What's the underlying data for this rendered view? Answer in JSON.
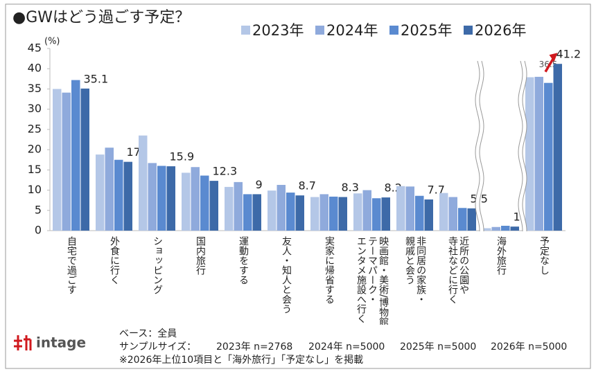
{
  "chart_data": {
    "type": "bar",
    "title": "●GWはどう過ごす予定？",
    "y_unit": "(%)",
    "categories": [
      "自宅で過ごす",
      "外食に行く",
      "ショッピング",
      "国内旅行",
      "運動をする",
      "友人・知人と会う",
      "実家に帰省する",
      "映画館・美術/博物館・\nテーマパーク・\nエンタメ施設へ行く",
      "非同居の家族・\n親戚と会う",
      "近所の公園や\n寺社などに行く",
      "海外旅行",
      "予定なし"
    ],
    "series": [
      {
        "name": "2023年",
        "color": "#b4c7e7",
        "values": [
          35.0,
          18.8,
          23.5,
          14.3,
          10.8,
          9.9,
          8.3,
          9.2,
          11.0,
          9.3,
          0.6,
          37.9
        ]
      },
      {
        "name": "2024年",
        "color": "#8faadc",
        "values": [
          34.1,
          20.5,
          16.7,
          15.7,
          12.0,
          11.3,
          9.0,
          10.0,
          10.9,
          8.3,
          0.9,
          38.0
        ]
      },
      {
        "name": "2025年",
        "color": "#5a8ad0",
        "values": [
          37.2,
          17.5,
          16.0,
          13.6,
          9.0,
          9.4,
          8.4,
          8.0,
          8.6,
          5.6,
          1.2,
          36.5
        ],
        "labeled_indices": [
          11
        ]
      },
      {
        "name": "2026年",
        "color": "#3d6aa8",
        "values": [
          35.1,
          17.0,
          15.9,
          12.3,
          9.0,
          8.7,
          8.3,
          8.2,
          7.7,
          5.5,
          1.0,
          41.2
        ],
        "data_labels": true
      }
    ],
    "ylim": [
      0,
      45
    ],
    "yticks": [
      0,
      5,
      10,
      15,
      20,
      25,
      30,
      35,
      40,
      45
    ],
    "axis_breaks_after": [
      9,
      10
    ],
    "grid": false
  },
  "logo": "intage",
  "footer": {
    "base": "ベース：全員",
    "sample_label": "サンプルサイズ：",
    "samples": [
      "2023年 n=2768",
      "2024年 n=5000",
      "2025年 n=5000",
      "2026年 n=5000"
    ],
    "note": "※2026年上位10項目と「海外旅行」「予定なし」を掲載"
  }
}
